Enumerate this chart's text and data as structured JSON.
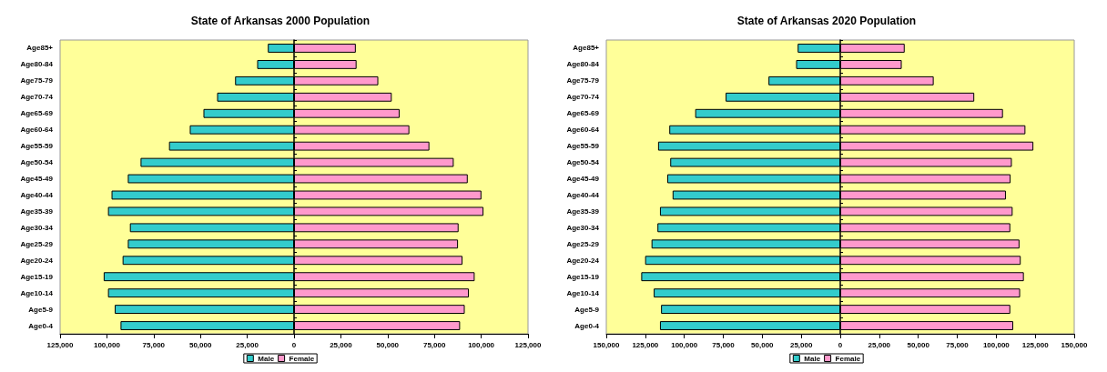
{
  "chart_data": [
    {
      "type": "bar",
      "title": "State of Arkansas 2000 Population",
      "orientation": "horizontal",
      "stacked": true,
      "legend": "bottom",
      "categories": [
        "Age85+",
        "Age80-84",
        "Age75-79",
        "Age70-74",
        "Age65-69",
        "Age60-64",
        "Age55-59",
        "Age50-54",
        "Age45-49",
        "Age40-44",
        "Age35-39",
        "Age30-34",
        "Age25-29",
        "Age20-24",
        "Age15-19",
        "Age10-14",
        "Age5-9",
        "Age0-4"
      ],
      "xlim": [
        -125000,
        125000
      ],
      "xticks": [
        {
          "value": -125000,
          "label": "125,000"
        },
        {
          "value": -100000,
          "label": "100,000"
        },
        {
          "value": -75000,
          "label": "75,000"
        },
        {
          "value": -50000,
          "label": "50,000"
        },
        {
          "value": -25000,
          "label": "25,000"
        },
        0,
        {
          "value": 25000,
          "label": "25,000"
        },
        {
          "value": 50000,
          "label": "50,000"
        },
        {
          "value": 75000,
          "label": "75,000"
        },
        {
          "value": 100000,
          "label": "100,000"
        },
        {
          "value": 125000,
          "label": "125,000"
        }
      ],
      "series": [
        {
          "name": "Male",
          "color": "#33cccc",
          "values": [
            -14000,
            -19700,
            -31500,
            -41100,
            -48400,
            -55700,
            -66800,
            -82000,
            -88800,
            -97500,
            -99400,
            -87700,
            -88800,
            -91600,
            -101700,
            -99400,
            -95800,
            -92700
          ]
        },
        {
          "name": "Female",
          "color": "#ff99cc",
          "values": [
            33000,
            33400,
            45000,
            52200,
            56400,
            61600,
            72300,
            85300,
            92800,
            100100,
            101200,
            87900,
            87600,
            90000,
            96500,
            93400,
            91200,
            88700
          ]
        }
      ]
    },
    {
      "type": "bar",
      "title": "State of Arkansas 2020 Population",
      "orientation": "horizontal",
      "stacked": true,
      "legend": "bottom",
      "categories": [
        "Age85+",
        "Age80-84",
        "Age75-79",
        "Age70-74",
        "Age65-69",
        "Age60-64",
        "Age55-59",
        "Age50-54",
        "Age45-49",
        "Age40-44",
        "Age35-39",
        "Age30-34",
        "Age25-29",
        "Age20-24",
        "Age15-19",
        "Age10-14",
        "Age5-9",
        "Age0-4"
      ],
      "xlim": [
        -150000,
        150000
      ],
      "xticks": [
        {
          "value": -150000,
          "label": "150,000"
        },
        {
          "value": -125000,
          "label": "125,000"
        },
        {
          "value": -100000,
          "label": "100,000"
        },
        {
          "value": -75000,
          "label": "75,000"
        },
        {
          "value": -50000,
          "label": "50,000"
        },
        {
          "value": -25000,
          "label": "25,000"
        },
        0,
        {
          "value": 25000,
          "label": "25,000"
        },
        {
          "value": 50000,
          "label": "50,000"
        },
        {
          "value": 75000,
          "label": "75,000"
        },
        {
          "value": 100000,
          "label": "100,000"
        },
        {
          "value": 125000,
          "label": "125,000"
        },
        {
          "value": 150000,
          "label": "150,000"
        }
      ],
      "series": [
        {
          "name": "Male",
          "color": "#33cccc",
          "values": [
            -27300,
            -28300,
            -46000,
            -73500,
            -93000,
            -109600,
            -116800,
            -109000,
            -110900,
            -107500,
            -115600,
            -117200,
            -121000,
            -125100,
            -127600,
            -119600,
            -114900,
            -115600
          ]
        },
        {
          "name": "Female",
          "color": "#ff99cc",
          "values": [
            41300,
            39400,
            59900,
            85900,
            104300,
            118700,
            123800,
            110000,
            109200,
            106200,
            110500,
            109000,
            114900,
            115700,
            117700,
            115300,
            109000,
            110900
          ]
        }
      ]
    }
  ]
}
